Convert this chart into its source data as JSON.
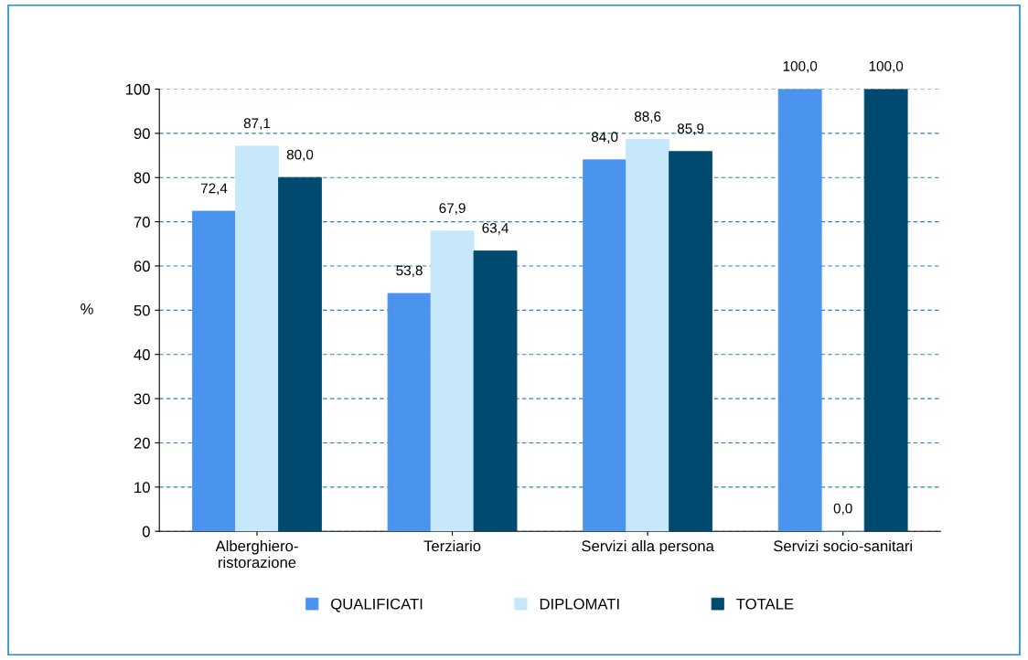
{
  "chart_data": {
    "type": "bar",
    "ylabel": "%",
    "categories": [
      "Alberghiero-ristorazione",
      "Terziario",
      "Servizi alla persona",
      "Servizi socio-sanitari"
    ],
    "series": [
      {
        "name": "QUALIFICATI",
        "color": "#4a94f0",
        "values": [
          72.4,
          53.8,
          84.0,
          100.0
        ],
        "value_labels": [
          "72,4",
          "53,8",
          "84,0",
          "100,0"
        ]
      },
      {
        "name": "DIPLOMATI",
        "color": "#c6e8fa",
        "values": [
          87.1,
          67.9,
          88.6,
          0.0
        ],
        "value_labels": [
          "87,1",
          "67,9",
          "88,6",
          "0,0"
        ]
      },
      {
        "name": "TOTALE",
        "color": "#004a70",
        "values": [
          80.0,
          63.4,
          85.9,
          100.0
        ],
        "value_labels": [
          "80,0",
          "63,4",
          "85,9",
          "100,0"
        ]
      }
    ],
    "ylim": [
      0,
      100
    ],
    "yticks": [
      0,
      10,
      20,
      30,
      40,
      50,
      60,
      70,
      80,
      90,
      100
    ],
    "grid": "y",
    "legend": "bottom"
  }
}
